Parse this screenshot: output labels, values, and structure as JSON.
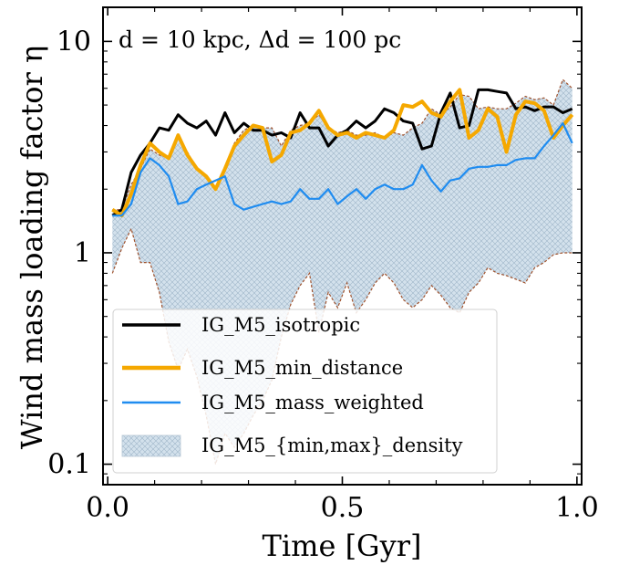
{
  "chart_data": {
    "type": "line",
    "xlabel": "Time [Gyr]",
    "ylabel": "Wind mass loading factor η",
    "annotation": "d = 10 kpc, Δd = 100 pc",
    "xlim": [
      -0.01,
      1.01
    ],
    "ylim": [
      0.08,
      14.5
    ],
    "yscale": "log",
    "grid": false,
    "legend_position": "bottom-left",
    "x_ticks": [
      {
        "value": 0.0,
        "label": "0.0"
      },
      {
        "value": 0.5,
        "label": "0.5"
      },
      {
        "value": 1.0,
        "label": "1.0"
      }
    ],
    "y_ticks": [
      {
        "value": 0.1,
        "label": "0.1"
      },
      {
        "value": 1,
        "label": "1"
      },
      {
        "value": 10,
        "label": "10"
      }
    ],
    "band": {
      "name": "IG_M5_{min,max}_density",
      "color": "#c9d9e6",
      "edge_color": "#a0522d",
      "x": [
        0.01,
        0.03,
        0.05,
        0.07,
        0.09,
        0.11,
        0.13,
        0.15,
        0.17,
        0.19,
        0.21,
        0.23,
        0.25,
        0.27,
        0.29,
        0.31,
        0.33,
        0.35,
        0.37,
        0.39,
        0.41,
        0.43,
        0.45,
        0.47,
        0.49,
        0.51,
        0.53,
        0.55,
        0.57,
        0.59,
        0.61,
        0.63,
        0.65,
        0.67,
        0.69,
        0.71,
        0.73,
        0.75,
        0.77,
        0.79,
        0.81,
        0.83,
        0.85,
        0.87,
        0.89,
        0.91,
        0.93,
        0.95,
        0.97,
        0.99
      ],
      "upper": [
        1.6,
        1.6,
        2.1,
        2.5,
        3.1,
        2.9,
        2.8,
        3.5,
        3.0,
        2.5,
        2.3,
        2.0,
        2.5,
        3.3,
        3.8,
        4.0,
        3.9,
        3.9,
        3.2,
        3.8,
        4.0,
        4.1,
        4.5,
        3.9,
        3.7,
        3.8,
        3.6,
        3.6,
        3.7,
        3.5,
        3.7,
        3.6,
        3.9,
        4.1,
        4.8,
        4.5,
        4.9,
        5.6,
        5.5,
        4.8,
        4.9,
        4.8,
        4.8,
        5.1,
        5.5,
        5.3,
        5.4,
        5.0,
        6.6,
        6.0
      ],
      "lower": [
        0.8,
        1.05,
        1.3,
        0.9,
        0.9,
        0.65,
        0.38,
        0.28,
        0.35,
        0.26,
        0.17,
        0.1,
        0.14,
        0.12,
        0.14,
        0.17,
        0.2,
        0.25,
        0.4,
        0.57,
        0.7,
        0.8,
        0.42,
        0.65,
        0.55,
        0.72,
        0.52,
        0.6,
        0.72,
        0.8,
        0.72,
        0.6,
        0.55,
        0.6,
        0.7,
        0.63,
        0.55,
        0.52,
        0.65,
        0.72,
        0.85,
        0.8,
        0.78,
        0.75,
        0.72,
        0.85,
        0.9,
        0.98,
        1.0,
        1.0
      ]
    },
    "series": [
      {
        "name": "IG_M5_isotropic",
        "color": "#000000",
        "width": 3,
        "x": [
          0.01,
          0.03,
          0.05,
          0.07,
          0.09,
          0.11,
          0.13,
          0.15,
          0.17,
          0.19,
          0.21,
          0.23,
          0.25,
          0.27,
          0.29,
          0.31,
          0.33,
          0.35,
          0.37,
          0.39,
          0.41,
          0.43,
          0.45,
          0.47,
          0.49,
          0.51,
          0.53,
          0.55,
          0.57,
          0.59,
          0.61,
          0.63,
          0.65,
          0.67,
          0.69,
          0.71,
          0.73,
          0.75,
          0.77,
          0.79,
          0.81,
          0.83,
          0.85,
          0.87,
          0.89,
          0.91,
          0.93,
          0.95,
          0.97,
          0.99
        ],
        "values": [
          1.5,
          1.6,
          2.4,
          2.9,
          3.3,
          3.9,
          3.8,
          4.5,
          4.1,
          3.9,
          4.2,
          3.6,
          4.6,
          3.7,
          4.1,
          3.8,
          3.8,
          3.6,
          3.7,
          3.5,
          4.6,
          3.9,
          3.9,
          3.2,
          3.6,
          3.8,
          4.2,
          3.9,
          4.2,
          4.8,
          4.6,
          4.2,
          4.1,
          3.1,
          3.2,
          4.6,
          5.7,
          3.9,
          4.0,
          5.9,
          5.9,
          5.8,
          5.7,
          4.8,
          4.9,
          4.7,
          4.9,
          4.9,
          4.6,
          4.8
        ]
      },
      {
        "name": "IG_M5_min_distance",
        "color": "#f5a800",
        "width": 4,
        "x": [
          0.01,
          0.03,
          0.05,
          0.07,
          0.09,
          0.11,
          0.13,
          0.15,
          0.17,
          0.19,
          0.21,
          0.23,
          0.25,
          0.27,
          0.29,
          0.31,
          0.33,
          0.35,
          0.37,
          0.39,
          0.41,
          0.43,
          0.45,
          0.47,
          0.49,
          0.51,
          0.53,
          0.55,
          0.57,
          0.59,
          0.61,
          0.63,
          0.65,
          0.67,
          0.69,
          0.71,
          0.73,
          0.75,
          0.77,
          0.79,
          0.81,
          0.83,
          0.85,
          0.87,
          0.89,
          0.91,
          0.93,
          0.95,
          0.97,
          0.99
        ],
        "values": [
          1.6,
          1.5,
          1.9,
          2.6,
          3.3,
          3.0,
          2.8,
          3.6,
          2.9,
          2.5,
          2.3,
          2.0,
          2.5,
          3.2,
          3.6,
          4.0,
          3.9,
          2.7,
          2.9,
          3.7,
          3.8,
          4.1,
          4.7,
          3.9,
          3.6,
          3.7,
          3.5,
          3.7,
          3.6,
          3.5,
          3.8,
          5.0,
          4.9,
          5.2,
          4.6,
          4.4,
          5.2,
          5.9,
          3.5,
          3.8,
          4.8,
          4.4,
          3.0,
          4.5,
          5.2,
          5.1,
          4.7,
          3.5,
          4.0,
          4.5
        ]
      },
      {
        "name": "IG_M5_mass_weighted",
        "color": "#1f8cf0",
        "width": 2.2,
        "x": [
          0.01,
          0.03,
          0.05,
          0.07,
          0.09,
          0.11,
          0.13,
          0.15,
          0.17,
          0.19,
          0.21,
          0.23,
          0.25,
          0.27,
          0.29,
          0.31,
          0.33,
          0.35,
          0.37,
          0.39,
          0.41,
          0.43,
          0.45,
          0.47,
          0.49,
          0.51,
          0.53,
          0.55,
          0.57,
          0.59,
          0.61,
          0.63,
          0.65,
          0.67,
          0.69,
          0.71,
          0.73,
          0.75,
          0.77,
          0.79,
          0.81,
          0.83,
          0.85,
          0.87,
          0.89,
          0.91,
          0.93,
          0.95,
          0.97,
          0.99
        ],
        "values": [
          1.5,
          1.5,
          1.7,
          2.4,
          2.8,
          2.6,
          2.3,
          1.7,
          1.75,
          2.0,
          2.1,
          2.2,
          2.3,
          1.7,
          1.6,
          1.65,
          1.7,
          1.75,
          1.7,
          1.75,
          2.0,
          1.8,
          1.8,
          2.0,
          1.7,
          1.85,
          2.0,
          1.8,
          2.0,
          2.1,
          2.0,
          2.0,
          2.1,
          2.6,
          2.2,
          1.95,
          2.2,
          2.25,
          2.5,
          2.55,
          2.55,
          2.6,
          2.6,
          2.75,
          2.8,
          2.8,
          3.2,
          3.6,
          4.1,
          3.3
        ]
      }
    ]
  }
}
